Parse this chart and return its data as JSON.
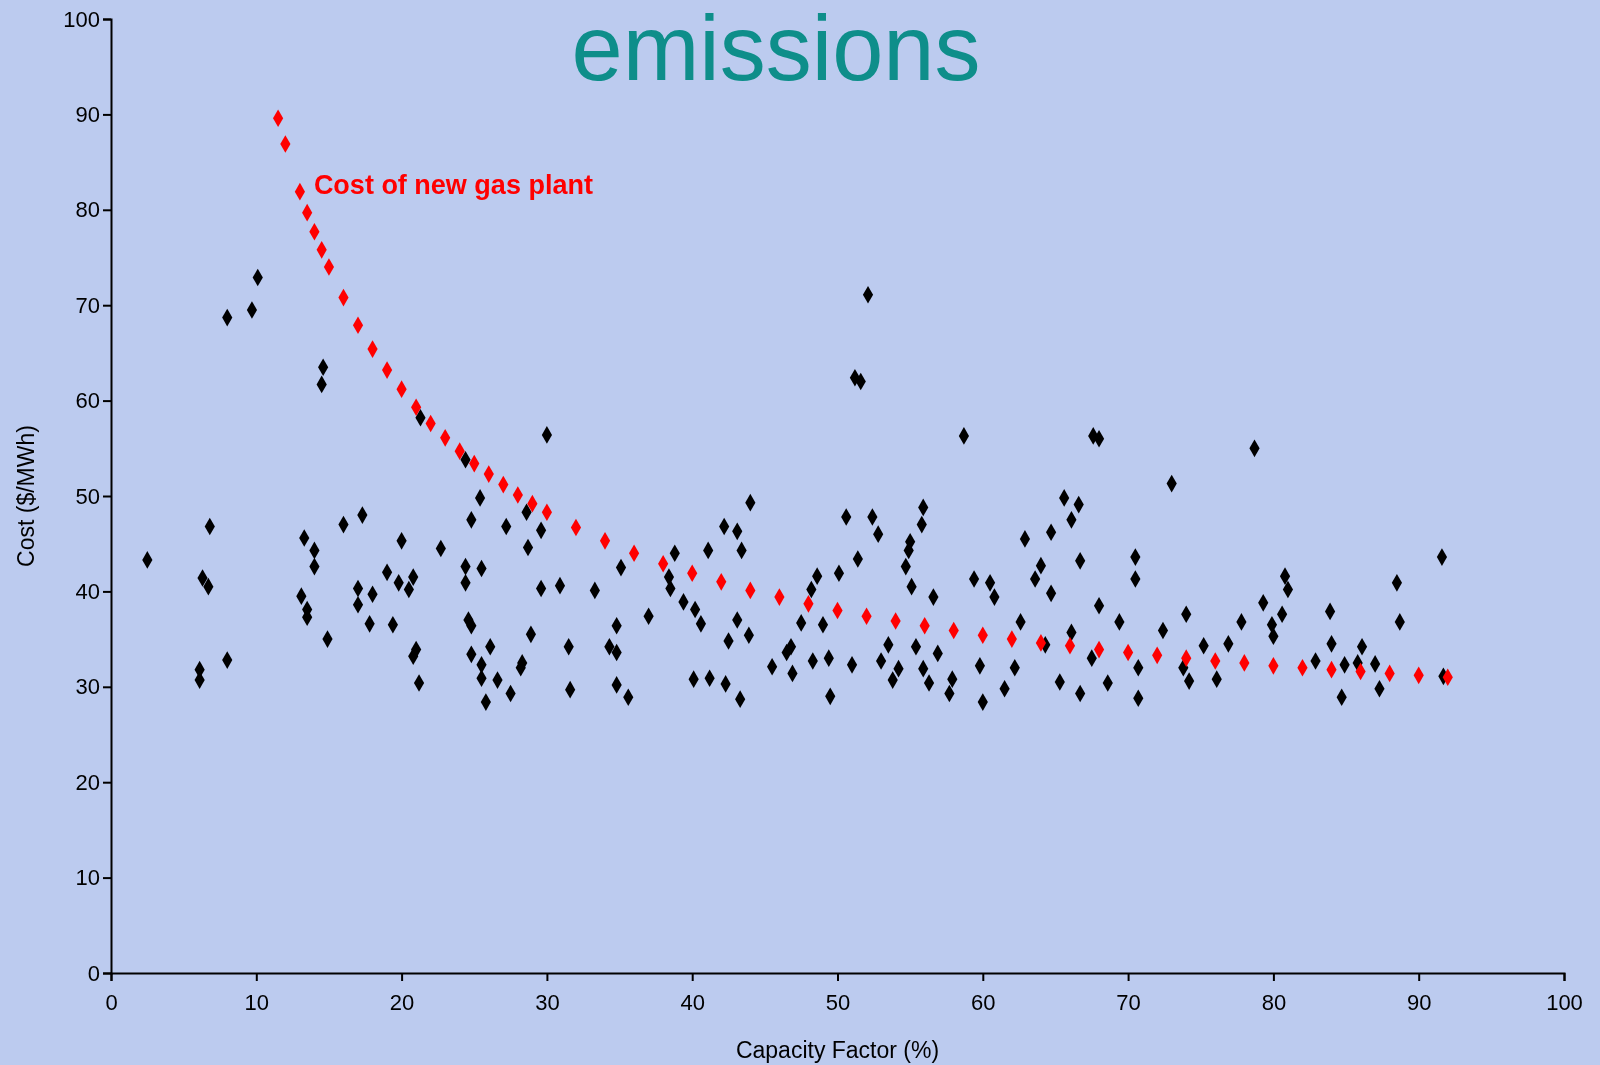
{
  "chart_data": {
    "type": "scatter",
    "title": "emissions",
    "xlabel": "Capacity Factor (%)",
    "ylabel": "Cost ($/MWh)",
    "xlim": [
      0,
      100
    ],
    "xticks": [
      0,
      10,
      20,
      30,
      40,
      50,
      60,
      70,
      80,
      90,
      100
    ],
    "ylim": [
      0,
      100
    ],
    "yticks": [
      0,
      10,
      20,
      30,
      40,
      50,
      60,
      70,
      80,
      90,
      100
    ],
    "marker": "diamond",
    "series": [
      {
        "color": "#000000",
        "x": [
          2.5,
          8.0,
          9.7,
          10.1,
          6.8,
          6.3,
          6.7,
          6.1,
          6.1,
          8.0,
          14.6,
          14.5,
          13.3,
          14.0,
          14.0,
          13.1,
          13.5,
          13.5,
          14.9,
          16.0,
          17.3,
          17.0,
          17.0,
          18.0,
          17.8,
          19.0,
          19.4,
          20.0,
          19.8,
          20.5,
          20.8,
          21.0,
          20.8,
          21.2,
          21.3,
          22.7,
          24.4,
          24.8,
          24.4,
          24.4,
          24.6,
          24.8,
          25.4,
          25.5,
          24.8,
          25.5,
          25.5,
          26.1,
          25.8,
          26.6,
          27.2,
          27.5,
          28.2,
          28.3,
          28.6,
          28.7,
          28.9,
          29.6,
          30.0,
          29.6,
          30.9,
          31.5,
          31.6,
          33.3,
          34.3,
          34.8,
          34.8,
          35.1,
          34.8,
          35.6,
          37.0,
          38.4,
          38.5,
          38.8,
          39.4,
          40.2,
          40.6,
          40.1,
          41.1,
          41.2,
          42.2,
          42.3,
          42.5,
          43.1,
          43.4,
          43.1,
          43.9,
          44.0,
          43.3,
          45.5,
          46.5,
          46.8,
          46.9,
          47.5,
          48.2,
          48.3,
          48.6,
          49.0,
          49.4,
          49.5,
          50.1,
          50.6,
          51.0,
          51.4,
          51.2,
          51.6,
          52.1,
          52.4,
          52.8,
          53.0,
          53.5,
          53.8,
          54.2,
          54.7,
          54.9,
          55.1,
          55.9,
          55.8,
          55.0,
          55.4,
          55.9,
          56.3,
          56.6,
          56.9,
          57.7,
          57.9,
          58.7,
          59.4,
          59.8,
          60.0,
          60.5,
          60.8,
          61.5,
          62.2,
          62.6,
          62.9,
          63.6,
          64.0,
          64.3,
          64.7,
          64.7,
          65.3,
          65.6,
          66.1,
          66.1,
          66.6,
          66.7,
          66.7,
          67.5,
          67.6,
          68.0,
          68.0,
          68.6,
          69.4,
          70.5,
          70.5,
          70.7,
          70.7,
          72.4,
          73.0,
          74.0,
          73.8,
          74.2,
          75.2,
          76.1,
          76.9,
          77.8,
          78.7,
          79.3,
          79.9,
          80.0,
          80.6,
          80.8,
          81.0,
          82.9,
          83.9,
          84.0,
          84.7,
          84.9,
          85.8,
          86.1,
          87.0,
          87.3,
          88.5,
          88.7,
          91.6,
          91.7
        ],
        "values": [
          43.3,
          68.7,
          69.5,
          72.9,
          46.8,
          41.4,
          40.5,
          31.8,
          30.7,
          32.8,
          63.5,
          61.7,
          45.6,
          44.3,
          42.6,
          39.5,
          38.1,
          37.3,
          35.0,
          47.0,
          48.0,
          40.3,
          38.6,
          39.7,
          36.6,
          42.0,
          36.5,
          45.3,
          40.9,
          40.2,
          41.5,
          33.9,
          33.2,
          30.4,
          58.2,
          44.5,
          53.8,
          47.5,
          42.6,
          40.9,
          37.0,
          36.4,
          49.8,
          42.4,
          33.4,
          32.3,
          30.9,
          34.2,
          28.4,
          30.7,
          46.8,
          29.3,
          32.0,
          32.5,
          48.3,
          44.6,
          35.5,
          46.4,
          56.4,
          40.3,
          40.6,
          34.2,
          29.7,
          40.1,
          34.2,
          33.6,
          30.2,
          42.5,
          36.4,
          28.9,
          37.4,
          41.5,
          40.3,
          44.0,
          38.9,
          38.1,
          36.6,
          30.8,
          44.3,
          30.9,
          46.8,
          30.3,
          34.8,
          46.3,
          44.3,
          37.0,
          35.4,
          49.3,
          28.7,
          32.1,
          33.6,
          34.2,
          31.4,
          36.7,
          40.2,
          32.7,
          41.6,
          36.5,
          33.0,
          29.0,
          41.9,
          47.8,
          32.3,
          43.4,
          62.4,
          62.0,
          71.1,
          47.8,
          46.0,
          32.7,
          34.4,
          30.7,
          31.9,
          42.6,
          44.3,
          40.5,
          48.8,
          47.0,
          45.2,
          34.2,
          31.9,
          30.4,
          39.4,
          33.5,
          29.3,
          30.8,
          56.3,
          41.3,
          32.2,
          28.4,
          40.9,
          39.4,
          29.8,
          32.0,
          36.8,
          45.5,
          41.3,
          42.7,
          34.4,
          39.8,
          46.2,
          30.5,
          49.8,
          47.5,
          35.7,
          49.1,
          43.2,
          29.3,
          33.0,
          56.3,
          56.0,
          38.5,
          30.4,
          36.8,
          43.6,
          41.3,
          32.0,
          28.8,
          35.9,
          51.3,
          37.6,
          32.0,
          30.6,
          34.3,
          30.8,
          34.5,
          36.8,
          55.0,
          38.8,
          36.5,
          35.3,
          37.6,
          41.6,
          40.2,
          32.7,
          37.9,
          34.5,
          28.9,
          32.3,
          32.5,
          34.2,
          32.4,
          29.8,
          40.9,
          36.8,
          43.6,
          31.1
        ]
      },
      {
        "name": "Cost of new gas plant",
        "color": "#ff0000",
        "x": [
          11.5,
          12,
          13,
          13.5,
          14,
          14.5,
          15,
          16,
          17,
          18,
          19,
          20,
          21,
          22,
          23,
          24,
          25,
          26,
          27,
          28,
          29,
          30,
          32,
          34,
          36,
          38,
          40,
          42,
          44,
          46,
          48,
          50,
          52,
          54,
          56,
          58,
          60,
          62,
          64,
          66,
          68,
          70,
          72,
          74,
          76,
          78,
          80,
          82,
          84,
          86,
          88,
          90,
          92
        ],
        "values": [
          89.6,
          86.9,
          81.9,
          79.7,
          77.7,
          75.8,
          74.0,
          70.8,
          67.9,
          65.4,
          63.2,
          61.2,
          59.3,
          57.6,
          56.1,
          54.7,
          53.4,
          52.3,
          51.2,
          50.1,
          49.2,
          48.3,
          46.7,
          45.3,
          44.0,
          42.9,
          41.9,
          41.0,
          40.1,
          39.4,
          38.7,
          38.0,
          37.4,
          36.9,
          36.4,
          35.9,
          35.4,
          35.0,
          34.6,
          34.3,
          33.9,
          33.6,
          33.3,
          33.0,
          32.7,
          32.5,
          32.2,
          32.0,
          31.8,
          31.6,
          31.4,
          31.2,
          31.0
        ]
      }
    ]
  }
}
